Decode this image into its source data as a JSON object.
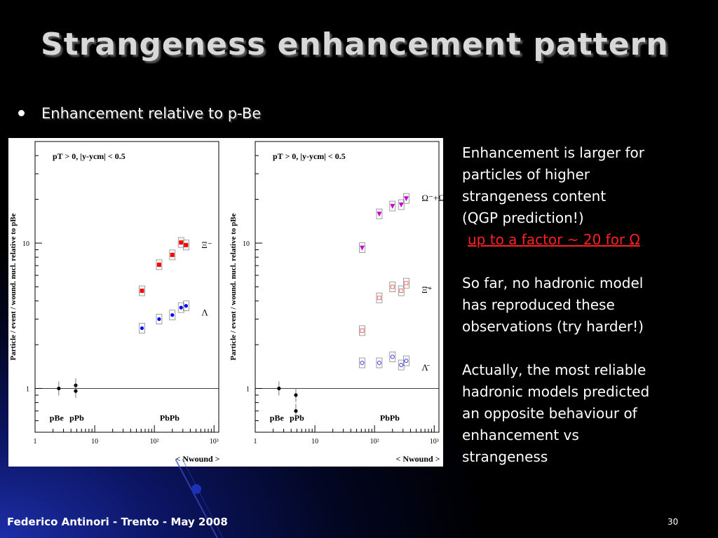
{
  "slide": {
    "title": "Strangeness enhancement pattern",
    "bullet": "Enhancement relative to p-Be",
    "side_paragraphs": [
      [
        "Enhancement is larger for",
        "particles of higher",
        "strangeness content",
        "(QGP prediction!)"
      ],
      [
        "So far, no hadronic model",
        "has reproduced these",
        "observations (try harder!)"
      ],
      [
        "Actually, the most reliable",
        "hadronic models predicted",
        "an opposite behaviour of",
        "enhancement vs",
        "strangeness"
      ]
    ],
    "highlight": "up to a factor ~ 20 for Ω",
    "footer": "Federico Antinori - Trento - May 2008",
    "page_number": "30"
  },
  "chart_data": [
    {
      "type": "scatter",
      "title": "pT > 0,  |y-ycm| < 0.5",
      "xlabel": "< Nwound >",
      "ylabel": "Particle / event / wound. nucl. relative to pBe",
      "xscale": "log",
      "yscale": "log",
      "xlim": [
        1,
        1200
      ],
      "ylim": [
        0.5,
        50
      ],
      "xticks": [
        "1",
        "10",
        "10²",
        "10³"
      ],
      "yticks": [
        "1",
        "10"
      ],
      "reference_line": 1,
      "region_labels": [
        "pBe",
        "pPb",
        "PbPb"
      ],
      "series": [
        {
          "name": "Ξ⁻",
          "color": "#ff0000",
          "marker": "square",
          "x": [
            62,
            120,
            200,
            280,
            340
          ],
          "y": [
            4.7,
            7.1,
            8.3,
            10.1,
            9.7
          ]
        },
        {
          "name": "Λ",
          "color": "#0000ff",
          "marker": "circle",
          "x": [
            62,
            120,
            200,
            280,
            340
          ],
          "y": [
            2.6,
            3.0,
            3.2,
            3.6,
            3.7
          ]
        },
        {
          "name": "",
          "color": "#000000",
          "marker": "circle",
          "x": [
            2.5,
            4.8,
            4.8
          ],
          "y": [
            1.0,
            1.05,
            0.96
          ]
        }
      ]
    },
    {
      "type": "scatter",
      "title": "pT > 0,  |y-ycm| < 0.5",
      "xlabel": "< Nwound >",
      "ylabel": "Particle / event / wound. nucl. relative to pBe",
      "xscale": "log",
      "yscale": "log",
      "xlim": [
        1,
        1200
      ],
      "ylim": [
        0.5,
        50
      ],
      "xticks": [
        "1",
        "10",
        "10²",
        "10³"
      ],
      "yticks": [
        "1",
        "10"
      ],
      "reference_line": 1,
      "region_labels": [
        "pBe",
        "pPb",
        "PbPb"
      ],
      "series": [
        {
          "name": "Ω⁻+Ω̄⁺",
          "color": "#cc00cc",
          "marker": "triangle-down",
          "x": [
            62,
            120,
            200,
            280,
            340
          ],
          "y": [
            9.3,
            15.9,
            18.0,
            18.4,
            20.3
          ]
        },
        {
          "name": "Ξ̄⁺",
          "color": "#ff6666",
          "marker": "open-square",
          "x": [
            62,
            120,
            200,
            280,
            340
          ],
          "y": [
            2.5,
            4.2,
            5.0,
            4.7,
            5.3
          ]
        },
        {
          "name": "Λ̄",
          "color": "#3333ff",
          "marker": "open-circle",
          "x": [
            62,
            120,
            200,
            280,
            340
          ],
          "y": [
            1.5,
            1.5,
            1.65,
            1.45,
            1.55
          ]
        },
        {
          "name": "",
          "color": "#000000",
          "marker": "circle",
          "x": [
            2.5,
            4.8,
            4.8
          ],
          "y": [
            1.0,
            0.9,
            0.7
          ]
        }
      ]
    }
  ],
  "colors": {
    "text": "#ffffff",
    "highlight": "#ff2020",
    "title": "#d8d8d8"
  }
}
